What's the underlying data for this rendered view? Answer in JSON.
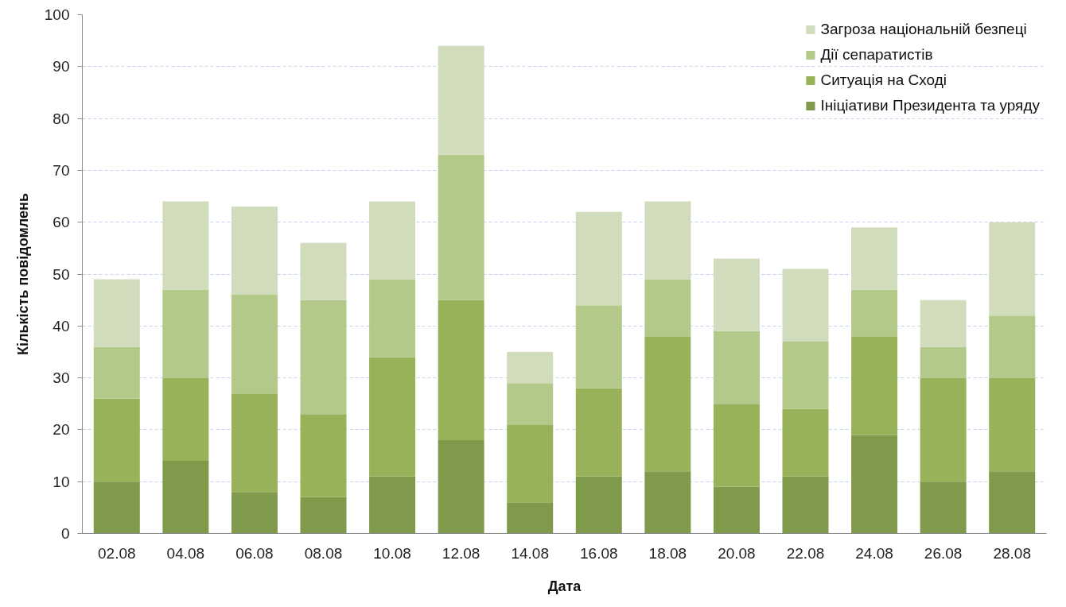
{
  "chart_data": {
    "type": "bar",
    "stacked": true,
    "xlabel": "Дата",
    "ylabel": "Кількість повідомлень",
    "categories": [
      "02.08",
      "04.08",
      "06.08",
      "08.08",
      "10.08",
      "12.08",
      "14.08",
      "16.08",
      "18.08",
      "20.08",
      "22.08",
      "24.08",
      "26.08",
      "28.08"
    ],
    "series": [
      {
        "name": "Ініціативи Президента та уряду",
        "color": "#7f9a4a",
        "values": [
          10,
          14,
          8,
          7,
          11,
          18,
          6,
          11,
          12,
          9,
          11,
          19,
          10,
          12
        ]
      },
      {
        "name": "Ситуація на Сході",
        "color": "#98b25a",
        "values": [
          16,
          16,
          19,
          16,
          23,
          27,
          15,
          17,
          26,
          16,
          13,
          19,
          20,
          18
        ]
      },
      {
        "name": "Дії сепаратистів",
        "color": "#b3c98a",
        "values": [
          10,
          17,
          19,
          22,
          15,
          28,
          8,
          16,
          11,
          14,
          13,
          9,
          6,
          12
        ]
      },
      {
        "name": "Загроза національній безпеці",
        "color": "#d0dcbc",
        "values": [
          13,
          17,
          17,
          11,
          15,
          21,
          6,
          18,
          15,
          14,
          14,
          12,
          9,
          18
        ]
      }
    ],
    "ylim": [
      0,
      100
    ],
    "yticks": [
      0,
      10,
      20,
      30,
      40,
      50,
      60,
      70,
      80,
      90,
      100
    ],
    "grid": "y",
    "legend": "top right"
  }
}
